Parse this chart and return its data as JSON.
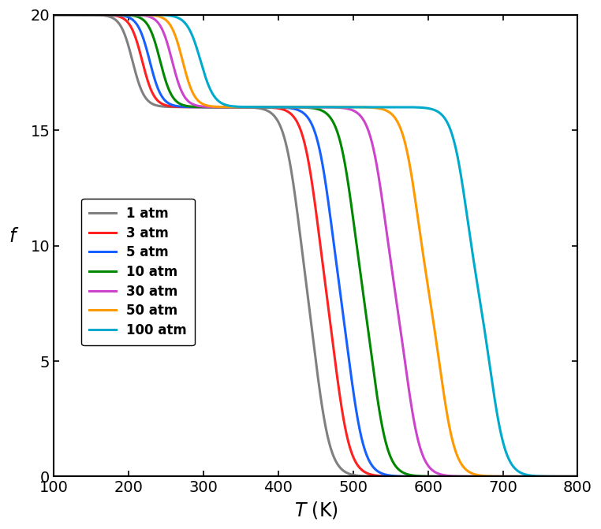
{
  "pressures": [
    1,
    3,
    5,
    10,
    30,
    50,
    100
  ],
  "colors": [
    "#808080",
    "#ff2020",
    "#1560ff",
    "#008800",
    "#cc44cc",
    "#ff9900",
    "#00aacc"
  ],
  "labels": [
    "1 atm",
    "3 atm",
    "5 atm",
    "10 atm",
    "30 atm",
    "50 atm",
    "100 atm"
  ],
  "T_range": [
    100,
    800
  ],
  "f_range": [
    0,
    20
  ],
  "xlabel": "T (K)",
  "ylabel": "f",
  "step1_centers": [
    205,
    218,
    228,
    242,
    258,
    272,
    296
  ],
  "step1_widths": [
    8,
    8,
    8,
    8,
    8,
    8,
    9
  ],
  "step2_centers": [
    425,
    450,
    468,
    498,
    540,
    584,
    650
  ],
  "step2_widths": [
    10,
    10,
    10,
    10,
    10,
    10,
    10
  ],
  "step3_centers": [
    452,
    478,
    497,
    528,
    572,
    618,
    685
  ],
  "step3_widths": [
    10,
    10,
    10,
    10,
    10,
    10,
    10
  ],
  "line_width": 2.2,
  "legend_fontsize": 12,
  "axis_fontsize": 17,
  "tick_fontsize": 14
}
